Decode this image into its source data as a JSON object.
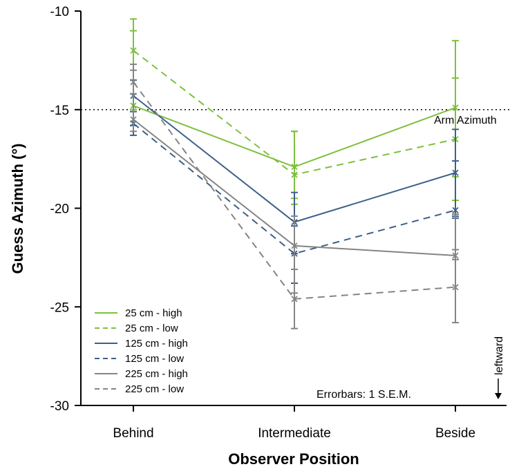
{
  "chart_data": {
    "type": "line",
    "xlabel": "Observer Position",
    "ylabel": "Guess Azimuth (°)",
    "categories": [
      "Behind",
      "Intermediate",
      "Beside"
    ],
    "ylim": [
      -30,
      -10
    ],
    "yticks": [
      -10,
      -15,
      -20,
      -25,
      -30
    ],
    "grid": false,
    "legend_position": "bottom-left",
    "series": [
      {
        "name": "25 cm - high",
        "color": "#7dbf3c",
        "dash": "solid",
        "values": [
          -14.8,
          -17.9,
          -14.9
        ],
        "lower": [
          -15.6,
          -19.5,
          -18.4
        ],
        "upper": [
          -10.4,
          -16.1,
          -11.5
        ]
      },
      {
        "name": "25 cm - low",
        "color": "#7dbf3c",
        "dash": "dashed",
        "values": [
          -12.0,
          -18.3,
          -16.5
        ],
        "lower": [
          -15.0,
          -19.8,
          -19.6
        ],
        "upper": [
          -11.0,
          -16.1,
          -13.4
        ]
      },
      {
        "name": "125 cm - high",
        "color": "#3c5f88",
        "dash": "solid",
        "values": [
          -14.3,
          -20.7,
          -18.2
        ],
        "lower": [
          -15.8,
          -22.3,
          -20.5
        ],
        "upper": [
          -13.5,
          -19.2,
          -16.0
        ]
      },
      {
        "name": "125 cm - low",
        "color": "#3c5f88",
        "dash": "dashed",
        "values": [
          -15.7,
          -22.3,
          -20.1
        ],
        "lower": [
          -16.3,
          -23.8,
          -20.4
        ],
        "upper": [
          -15.1,
          -20.9,
          -17.6
        ]
      },
      {
        "name": "225 cm - high",
        "color": "#848484",
        "dash": "solid",
        "values": [
          -15.5,
          -21.9,
          -22.4
        ],
        "lower": [
          -16.1,
          -24.3,
          -22.6
        ],
        "upper": [
          -12.7,
          -20.4,
          -22.1
        ]
      },
      {
        "name": "225 cm - low",
        "color": "#848484",
        "dash": "dashed",
        "values": [
          -13.6,
          -24.6,
          -24.0
        ],
        "lower": [
          -14.2,
          -26.1,
          -25.8
        ],
        "upper": [
          -13.0,
          -23.1,
          -20.3
        ]
      }
    ],
    "reference_line": {
      "value": -15,
      "label": "Arm Azimuth",
      "style": "dotted"
    },
    "annotations": {
      "errorbars": "Errorbars: 1 S.E.M.",
      "direction": "leftward"
    }
  }
}
